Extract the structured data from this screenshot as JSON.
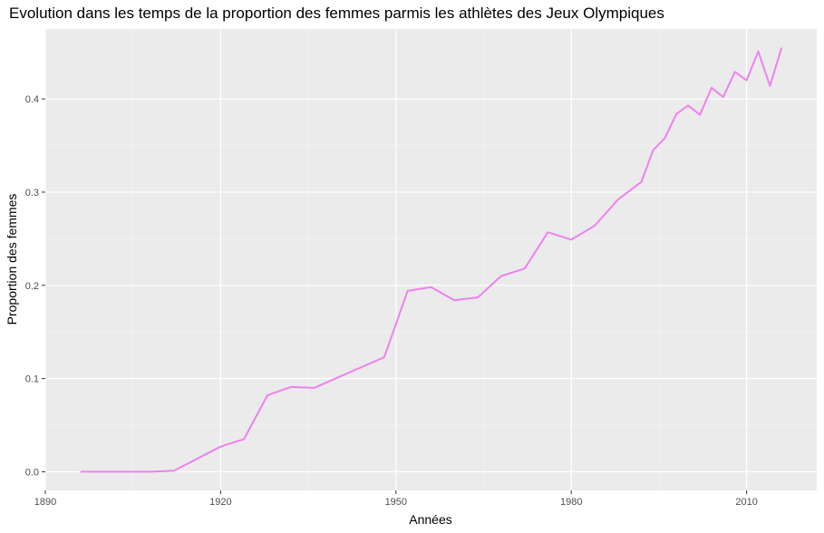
{
  "chart_data": {
    "type": "line",
    "title": "Evolution dans les temps de la proportion des femmes parmis les athlètes des Jeux Olympiques",
    "xlabel": "Années",
    "ylabel": "Proportion des femmes",
    "xlim": [
      1890,
      2022
    ],
    "ylim": [
      -0.02,
      0.475
    ],
    "x_ticks": [
      1890,
      1920,
      1950,
      1980,
      2010
    ],
    "y_ticks": [
      0.0,
      0.1,
      0.2,
      0.3,
      0.4
    ],
    "y_tick_labels": [
      "0.0",
      "0.1",
      "0.2",
      "0.3",
      "0.4"
    ],
    "grid": true,
    "series": [
      {
        "color": "#ee82ee",
        "x": [
          1896,
          1900,
          1904,
          1906,
          1908,
          1912,
          1920,
          1924,
          1928,
          1932,
          1936,
          1948,
          1952,
          1956,
          1960,
          1964,
          1968,
          1972,
          1976,
          1980,
          1984,
          1988,
          1992,
          1994,
          1996,
          1998,
          2000,
          2002,
          2004,
          2006,
          2008,
          2010,
          2012,
          2014,
          2016
        ],
        "y": [
          0.0,
          0.0,
          0.0,
          0.0,
          0.0,
          0.001,
          0.027,
          0.035,
          0.082,
          0.091,
          0.09,
          0.123,
          0.194,
          0.198,
          0.184,
          0.187,
          0.21,
          0.218,
          0.257,
          0.249,
          0.264,
          0.292,
          0.311,
          0.345,
          0.358,
          0.384,
          0.393,
          0.383,
          0.412,
          0.402,
          0.429,
          0.42,
          0.451,
          0.414,
          0.455
        ]
      }
    ]
  }
}
